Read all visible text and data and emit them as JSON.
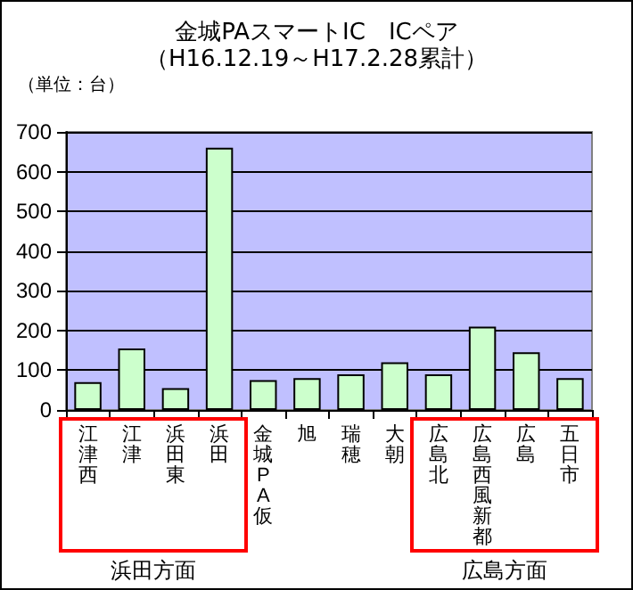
{
  "chart_data": {
    "type": "bar",
    "title": "金城PAスマートIC　ICペア",
    "subtitle": "（H16.12.19～H17.2.28累計）",
    "ylabel": "（単位：台）",
    "categories": [
      "江津西",
      "江津",
      "浜田東",
      "浜田",
      "金城PA仮",
      "旭",
      "瑞穂",
      "大朝",
      "広島北",
      "広島西風新都",
      "広島",
      "五日市"
    ],
    "values": [
      70,
      155,
      55,
      660,
      75,
      80,
      90,
      120,
      90,
      210,
      145,
      80
    ],
    "color": "#ccffcc",
    "ylim": [
      0,
      700
    ],
    "yticks": [
      0,
      100,
      200,
      300,
      400,
      500,
      600,
      700
    ],
    "grid": "y",
    "annotations": [
      "浜田方面",
      "広島方面"
    ]
  }
}
